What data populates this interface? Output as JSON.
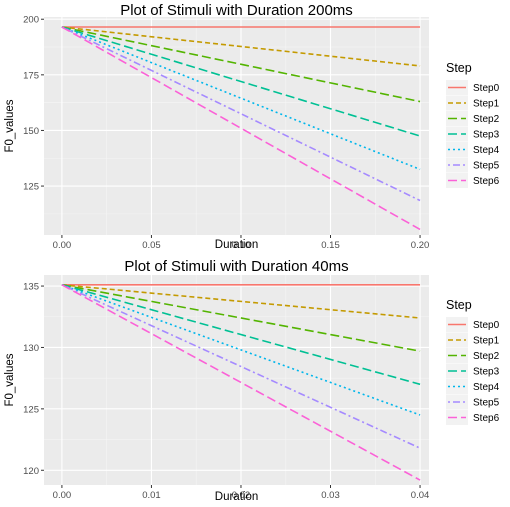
{
  "chart_data": [
    {
      "type": "line",
      "title": "Plot of Stimuli with Duration 200ms",
      "xlabel": "Duration",
      "ylabel": "F0_values",
      "xlim": [
        -0.01,
        0.205
      ],
      "ylim": [
        103,
        201
      ],
      "xticks": [
        0.0,
        0.05,
        0.1,
        0.15,
        0.2
      ],
      "xtick_labels": [
        "0.00",
        "0.05",
        "0.10",
        "0.15",
        "0.20"
      ],
      "yticks": [
        125,
        150,
        175,
        200
      ],
      "ytick_labels": [
        "125",
        "150",
        "175",
        "200"
      ],
      "x": [
        0.0,
        0.2
      ],
      "grid": true,
      "legend_title": "Step",
      "legend_position": "right",
      "series": [
        {
          "name": "Step0",
          "color": "#F8766D",
          "dash": "solid",
          "values": [
            196.5,
            196.5
          ]
        },
        {
          "name": "Step1",
          "color": "#C49A00",
          "dash": "dashed",
          "values": [
            196.5,
            179.0
          ]
        },
        {
          "name": "Step2",
          "color": "#53B400",
          "dash": "longdash",
          "values": [
            196.5,
            163.0
          ]
        },
        {
          "name": "Step3",
          "color": "#00C094",
          "dash": "longdash",
          "values": [
            196.5,
            147.5
          ]
        },
        {
          "name": "Step4",
          "color": "#00B6EB",
          "dash": "dotted",
          "values": [
            196.5,
            132.5
          ]
        },
        {
          "name": "Step5",
          "color": "#A58AFF",
          "dash": "dotdash",
          "values": [
            196.5,
            118.5
          ]
        },
        {
          "name": "Step6",
          "color": "#FB61D7",
          "dash": "longdash",
          "values": [
            196.5,
            105.5
          ]
        }
      ]
    },
    {
      "type": "line",
      "title": "Plot of Stimuli with Duration 40ms",
      "xlabel": "Duration",
      "ylabel": "F0_values",
      "xlim": [
        -0.002,
        0.041
      ],
      "ylim": [
        118.8,
        135.9
      ],
      "xticks": [
        0.0,
        0.01,
        0.02,
        0.03,
        0.04
      ],
      "xtick_labels": [
        "0.00",
        "0.01",
        "0.02",
        "0.03",
        "0.04"
      ],
      "yticks": [
        120,
        125,
        130,
        135
      ],
      "ytick_labels": [
        "120",
        "125",
        "130",
        "135"
      ],
      "x": [
        0.0,
        0.04
      ],
      "grid": true,
      "legend_title": "Step",
      "legend_position": "right",
      "series": [
        {
          "name": "Step0",
          "color": "#F8766D",
          "dash": "solid",
          "values": [
            135.1,
            135.1
          ]
        },
        {
          "name": "Step1",
          "color": "#C49A00",
          "dash": "dashed",
          "values": [
            135.1,
            132.4
          ]
        },
        {
          "name": "Step2",
          "color": "#53B400",
          "dash": "longdash",
          "values": [
            135.1,
            129.7
          ]
        },
        {
          "name": "Step3",
          "color": "#00C094",
          "dash": "longdash",
          "values": [
            135.1,
            127.0
          ]
        },
        {
          "name": "Step4",
          "color": "#00B6EB",
          "dash": "dotted",
          "values": [
            135.1,
            124.5
          ]
        },
        {
          "name": "Step5",
          "color": "#A58AFF",
          "dash": "dotdash",
          "values": [
            135.1,
            121.8
          ]
        },
        {
          "name": "Step6",
          "color": "#FB61D7",
          "dash": "longdash",
          "values": [
            135.1,
            119.2
          ]
        }
      ]
    }
  ]
}
